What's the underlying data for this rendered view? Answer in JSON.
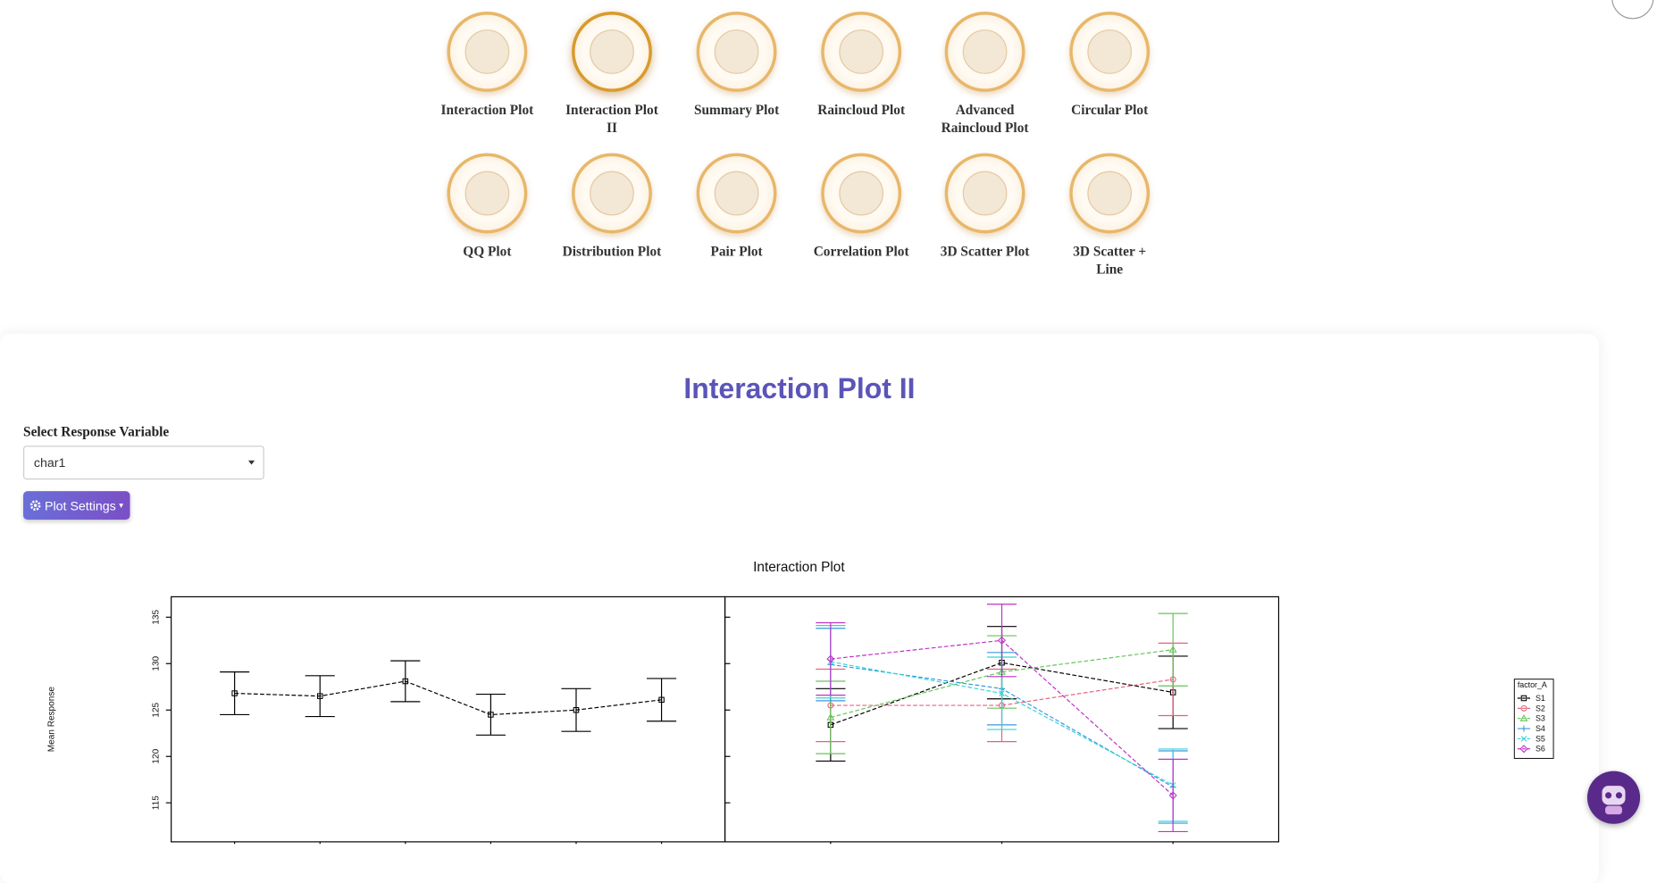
{
  "nav": [
    "Interaction Plot",
    "Interaction Plot II",
    "Summary Plot",
    "Raincloud Plot",
    "Advanced Raincloud Plot",
    "Circular Plot",
    "QQ Plot",
    "Distribution Plot",
    "Pair Plot",
    "Correlation Plot",
    "3D Scatter Plot",
    "3D Scatter + Line"
  ],
  "page_title": "Interaction Plot II",
  "select_label": "Select Response Variable",
  "select_value": "char1",
  "settings_button": "Plot Settings",
  "chart_data": [
    {
      "type": "line",
      "title": "Interaction Plot",
      "y_label": "Mean Response",
      "categories": [
        null,
        null,
        null,
        null,
        null,
        null
      ],
      "ylim": [
        110.8,
        137.2
      ],
      "yticks": [
        115,
        120,
        125,
        130,
        135
      ],
      "series": [
        {
          "color": "#000000",
          "marker": "square",
          "values": [
            126.8,
            126.5,
            128.1,
            124.5,
            125.0,
            126.1
          ],
          "errors": [
            2.3,
            2.2,
            2.2,
            2.2,
            2.3,
            2.3
          ]
        }
      ]
    },
    {
      "type": "line",
      "legend_title": "factor_A",
      "categories": [
        null,
        null,
        null
      ],
      "ylim": [
        110.8,
        137.2
      ],
      "yticks": [
        115,
        120,
        125,
        130,
        135
      ],
      "series": [
        {
          "name": "S1",
          "color": "#000000",
          "marker": "square",
          "values": [
            123.4,
            130.1,
            126.9
          ],
          "errors": [
            3.9,
            3.9,
            3.9
          ]
        },
        {
          "name": "S2",
          "color": "#e8607c",
          "marker": "circle",
          "values": [
            125.5,
            125.5,
            128.3
          ],
          "errors": [
            3.9,
            3.9,
            3.9
          ]
        },
        {
          "name": "S3",
          "color": "#66c45a",
          "marker": "triangle",
          "values": [
            124.2,
            129.1,
            131.5
          ],
          "errors": [
            3.9,
            3.9,
            3.9
          ]
        },
        {
          "name": "S4",
          "color": "#3a98e0",
          "marker": "plus",
          "values": [
            129.9,
            127.3,
            116.7
          ],
          "errors": [
            3.9,
            3.9,
            3.9
          ]
        },
        {
          "name": "S5",
          "color": "#35d4d6",
          "marker": "cross",
          "values": [
            130.2,
            126.8,
            116.9
          ],
          "errors": [
            3.9,
            3.9,
            3.9
          ]
        },
        {
          "name": "S6",
          "color": "#c031c8",
          "marker": "diamond",
          "values": [
            130.5,
            132.5,
            115.8
          ],
          "errors": [
            3.9,
            3.9,
            3.9
          ]
        }
      ]
    }
  ]
}
